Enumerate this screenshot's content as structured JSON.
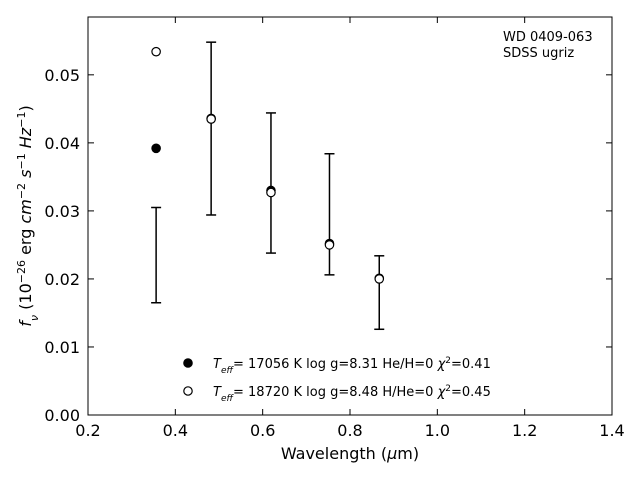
{
  "chart_data": {
    "type": "scatter",
    "title": "",
    "xlabel": "Wavelength (μm)",
    "ylabel": "f_ν (10^-26 erg cm^-2 s^-1 Hz^-1)",
    "xlim": [
      0.2,
      1.4
    ],
    "ylim": [
      0.0,
      0.0585
    ],
    "x_ticks": [
      "0.2",
      "0.4",
      "0.6",
      "0.8",
      "1.0",
      "1.2",
      "1.4"
    ],
    "y_ticks": [
      "0.00",
      "0.01",
      "0.02",
      "0.03",
      "0.04",
      "0.05"
    ],
    "annotation": [
      "WD 0409-063",
      "SDSS ugriz"
    ],
    "observed": {
      "x": [
        0.356,
        0.482,
        0.619,
        0.753,
        0.867
      ],
      "y": [
        0.0235,
        0.0421,
        0.0341,
        0.0295,
        0.018
      ],
      "yerr": [
        0.007,
        0.0127,
        0.0103,
        0.0089,
        0.0054
      ]
    },
    "series": [
      {
        "name": "T_eff= 17056 K  log g=8.31  He/H=0  χ²=0.41",
        "marker": "filled-circle",
        "x": [
          0.356,
          0.482,
          0.619,
          0.753,
          0.867
        ],
        "y": [
          0.0392,
          0.0436,
          0.033,
          0.0252,
          0.0201
        ]
      },
      {
        "name": "T_eff= 18720 K  log g=8.48  H/He=0  χ²=0.45",
        "marker": "open-circle",
        "x": [
          0.356,
          0.482,
          0.619,
          0.753,
          0.867
        ],
        "y": [
          0.0534,
          0.0435,
          0.0327,
          0.025,
          0.02
        ]
      }
    ],
    "legend_placement": "bottom-center",
    "grid": false
  }
}
